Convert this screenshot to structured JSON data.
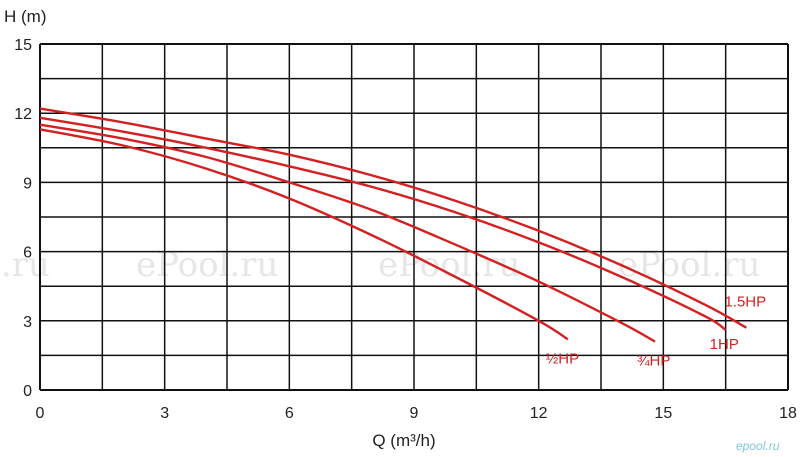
{
  "chart_data": {
    "type": "line",
    "xlabel": "Q (m³/h)",
    "ylabel": "H (m)",
    "xlim": [
      0,
      18
    ],
    "ylim": [
      0,
      15
    ],
    "x_ticks": [
      "0",
      "3",
      "6",
      "9",
      "12",
      "15",
      "18"
    ],
    "y_ticks": [
      "0",
      "3",
      "6",
      "9",
      "12",
      "15"
    ],
    "grid": true,
    "line_color": "#d42020",
    "series": [
      {
        "name": "½HP",
        "x": [
          0,
          2,
          4,
          6,
          8,
          10,
          12,
          12.7
        ],
        "y": [
          11.3,
          10.6,
          9.6,
          8.3,
          6.7,
          4.9,
          3.0,
          2.2
        ]
      },
      {
        "name": "¾HP",
        "x": [
          0,
          2,
          4,
          6,
          8,
          10,
          12,
          14,
          14.8
        ],
        "y": [
          11.5,
          10.9,
          10.1,
          9.0,
          7.8,
          6.3,
          4.7,
          2.9,
          2.1
        ]
      },
      {
        "name": "1HP",
        "x": [
          0,
          2,
          4,
          6,
          8,
          10,
          12,
          14,
          16,
          16.5
        ],
        "y": [
          11.8,
          11.2,
          10.5,
          9.7,
          8.8,
          7.7,
          6.4,
          4.9,
          3.2,
          2.6
        ]
      },
      {
        "name": "1.5HP",
        "x": [
          0,
          2,
          4,
          6,
          8,
          10,
          12,
          14,
          16,
          17.0
        ],
        "y": [
          12.2,
          11.6,
          10.9,
          10.2,
          9.3,
          8.2,
          6.9,
          5.4,
          3.7,
          2.7
        ]
      }
    ]
  },
  "watermarks": [
    "l.ru",
    "ePool.ru",
    "ePool.ru",
    "ePool.ru"
  ],
  "brand_mark": "epool.ru"
}
